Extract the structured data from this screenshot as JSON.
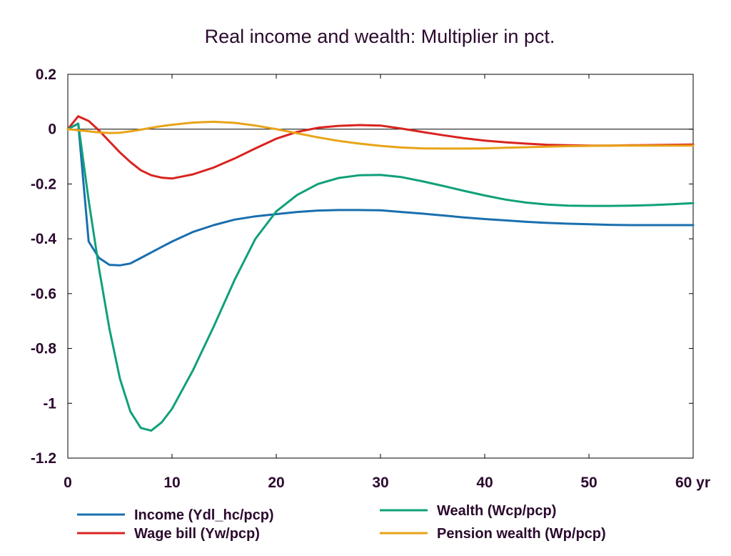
{
  "chart_data": {
    "type": "line",
    "title": "Real income and wealth: Multiplier in pct.",
    "xlabel": "",
    "ylabel": "",
    "x_unit_label": "yr",
    "xlim": [
      0,
      60
    ],
    "ylim": [
      -1.2,
      0.2
    ],
    "x_ticks": [
      0,
      10,
      20,
      30,
      40,
      50,
      60
    ],
    "x_tick_labels": [
      "0",
      "10",
      "20",
      "30",
      "40",
      "50",
      "60 yr"
    ],
    "y_ticks": [
      0.2,
      0,
      -0.2,
      -0.4,
      -0.6,
      -0.8,
      -1,
      -1.2
    ],
    "y_tick_labels": [
      "0.2",
      "0",
      "-0.2",
      "-0.4",
      "-0.6",
      "-0.8",
      "-1",
      "-1.2"
    ],
    "zero_line": true,
    "grid": false,
    "legend_position": "bottom",
    "x": [
      0,
      1,
      2,
      3,
      4,
      5,
      6,
      7,
      8,
      9,
      10,
      12,
      14,
      16,
      18,
      20,
      22,
      24,
      26,
      28,
      30,
      32,
      34,
      36,
      38,
      40,
      42,
      44,
      46,
      48,
      50,
      52,
      54,
      56,
      58,
      60
    ],
    "series": [
      {
        "name": "Income (Ydl_hc/pcp)",
        "color": "#1a6fae",
        "values": [
          0,
          0.02,
          -0.41,
          -0.47,
          -0.495,
          -0.497,
          -0.49,
          -0.47,
          -0.45,
          -0.43,
          -0.41,
          -0.375,
          -0.35,
          -0.33,
          -0.318,
          -0.31,
          -0.302,
          -0.297,
          -0.295,
          -0.295,
          -0.296,
          -0.302,
          -0.308,
          -0.315,
          -0.322,
          -0.328,
          -0.333,
          -0.338,
          -0.342,
          -0.345,
          -0.347,
          -0.349,
          -0.35,
          -0.35,
          -0.35,
          -0.35
        ]
      },
      {
        "name": "Wage bill (Yw/pcp)",
        "color": "#d9231f",
        "values": [
          0,
          0.047,
          0.03,
          -0.005,
          -0.045,
          -0.085,
          -0.12,
          -0.15,
          -0.168,
          -0.177,
          -0.18,
          -0.165,
          -0.14,
          -0.107,
          -0.07,
          -0.035,
          -0.01,
          0.005,
          0.012,
          0.015,
          0.013,
          0.002,
          -0.01,
          -0.022,
          -0.033,
          -0.042,
          -0.048,
          -0.053,
          -0.057,
          -0.059,
          -0.06,
          -0.06,
          -0.059,
          -0.058,
          -0.057,
          -0.056
        ]
      },
      {
        "name": "Wealth (Wcp/pcp)",
        "color": "#10a07a",
        "values": [
          0,
          0.02,
          -0.26,
          -0.51,
          -0.73,
          -0.91,
          -1.03,
          -1.09,
          -1.1,
          -1.07,
          -1.02,
          -0.88,
          -0.72,
          -0.55,
          -0.4,
          -0.3,
          -0.24,
          -0.2,
          -0.178,
          -0.168,
          -0.167,
          -0.175,
          -0.19,
          -0.207,
          -0.225,
          -0.242,
          -0.257,
          -0.268,
          -0.275,
          -0.279,
          -0.28,
          -0.28,
          -0.279,
          -0.277,
          -0.274,
          -0.27
        ]
      },
      {
        "name": "Pension wealth (Wp/pcp)",
        "color": "#e8a317",
        "values": [
          0,
          -0.004,
          -0.008,
          -0.012,
          -0.014,
          -0.013,
          -0.008,
          -0.002,
          0.005,
          0.011,
          0.016,
          0.024,
          0.027,
          0.023,
          0.013,
          0.0,
          -0.015,
          -0.03,
          -0.043,
          -0.053,
          -0.061,
          -0.067,
          -0.07,
          -0.071,
          -0.071,
          -0.07,
          -0.068,
          -0.066,
          -0.064,
          -0.062,
          -0.061,
          -0.06,
          -0.06,
          -0.06,
          -0.06,
          -0.06
        ]
      }
    ]
  }
}
